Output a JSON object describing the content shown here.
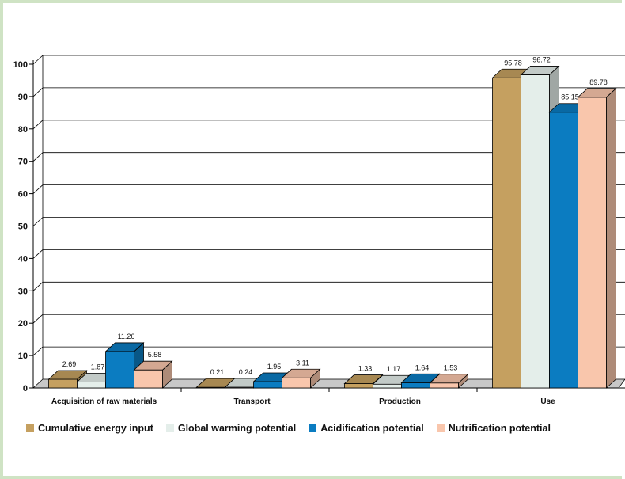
{
  "chart_data": {
    "type": "bar",
    "title": "",
    "xlabel": "",
    "ylabel": "",
    "ylim": [
      0,
      100
    ],
    "yticks": [
      0,
      10,
      20,
      30,
      40,
      50,
      60,
      70,
      80,
      90,
      100
    ],
    "grid": true,
    "style": "3d-clustered-column",
    "legend_position": "bottom",
    "categories": [
      "Acquisition of raw materials",
      "Transport",
      "Production",
      "Use"
    ],
    "series": [
      {
        "name": "Cumulative energy input",
        "color": "#c5a060",
        "values": [
          2.69,
          0.21,
          1.33,
          95.78
        ]
      },
      {
        "name": "Global warming potential",
        "color": "#e4eeea",
        "values": [
          1.87,
          0.24,
          1.17,
          96.72
        ]
      },
      {
        "name": "Acidification potential",
        "color": "#0b7cc1",
        "values": [
          11.26,
          1.95,
          1.64,
          85.15
        ]
      },
      {
        "name": "Nutrification potential",
        "color": "#f9c6ac",
        "values": [
          5.58,
          3.11,
          1.53,
          89.78
        ]
      }
    ],
    "value_labels": [
      [
        "2.69",
        "0.21",
        "1.33",
        "95.78"
      ],
      [
        "1.87",
        "0.24",
        "1.17",
        "96.72"
      ],
      [
        "11.26",
        "1.95",
        "1.64",
        "85.15"
      ],
      [
        "5.58",
        "3.11",
        "1.53",
        "89.78"
      ]
    ]
  }
}
